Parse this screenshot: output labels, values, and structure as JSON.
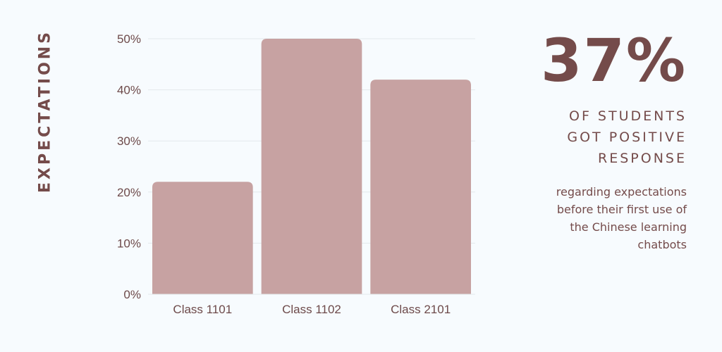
{
  "side_title": "EXPECTATIONS",
  "stat": {
    "value": "37%",
    "headline": "OF STUDENTS\nGOT POSITIVE\nRESPONSE",
    "detail": "regarding expectations\nbefore their first use of\nthe Chinese learning\nchatbots"
  },
  "colors": {
    "bar": "#c7a2a2",
    "text": "#744b4a",
    "tick_text": "#6d4a4a",
    "grid": "#e3e9ec",
    "background": "#f7fbfe"
  },
  "chart_data": {
    "type": "bar",
    "categories": [
      "Class 1101",
      "Class 1102",
      "Class 2101"
    ],
    "values": [
      22,
      50,
      42
    ],
    "ylim": [
      0,
      50
    ],
    "yticks": [
      0,
      10,
      20,
      30,
      40,
      50
    ],
    "ytick_labels": [
      "0%",
      "10%",
      "20%",
      "30%",
      "40%",
      "50%"
    ],
    "grid": true,
    "legend": "none"
  }
}
